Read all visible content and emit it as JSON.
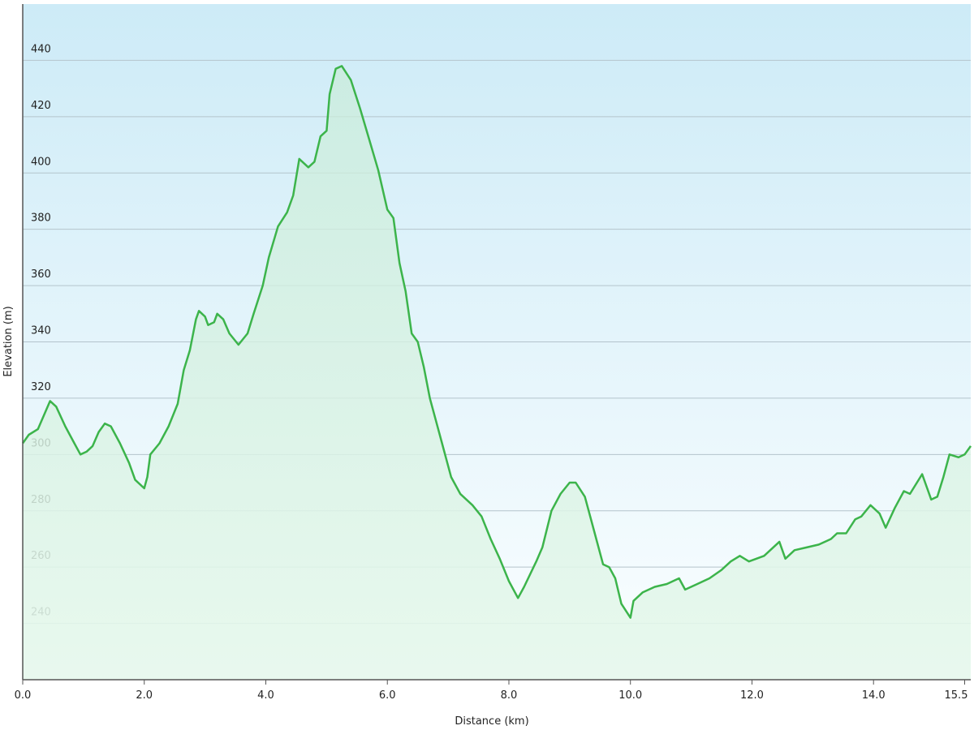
{
  "chart_data": {
    "type": "area",
    "xlabel": "Distance  (km)",
    "ylabel": "Elevation (m)",
    "color": "#3cb44b",
    "grid": true,
    "xlim": [
      0,
      15.6
    ],
    "ylim": [
      220,
      460
    ],
    "xticks": [
      {
        "value": 0,
        "label": "0.0"
      },
      {
        "value": 2,
        "label": "2.0"
      },
      {
        "value": 4,
        "label": "4.0"
      },
      {
        "value": 6,
        "label": "6.0"
      },
      {
        "value": 8,
        "label": "8.0"
      },
      {
        "value": 10,
        "label": "10.0"
      },
      {
        "value": 12,
        "label": "12.0"
      },
      {
        "value": 14,
        "label": "14.0"
      },
      15.5
    ],
    "yticks": [
      240,
      260,
      280,
      300,
      320,
      340,
      360,
      380,
      400,
      420,
      440
    ],
    "x": [
      0,
      0.1,
      0.25,
      0.45,
      0.55,
      0.7,
      0.85,
      0.95,
      1.05,
      1.15,
      1.25,
      1.35,
      1.45,
      1.6,
      1.75,
      1.85,
      2,
      2.05,
      2.1,
      2.25,
      2.4,
      2.55,
      2.65,
      2.75,
      2.85,
      2.9,
      3,
      3.05,
      3.15,
      3.2,
      3.3,
      3.4,
      3.55,
      3.7,
      3.8,
      3.95,
      4.05,
      4.2,
      4.35,
      4.45,
      4.55,
      4.7,
      4.8,
      4.9,
      5,
      5.05,
      5.15,
      5.25,
      5.4,
      5.55,
      5.7,
      5.85,
      6,
      6.1,
      6.2,
      6.3,
      6.4,
      6.5,
      6.6,
      6.7,
      6.8,
      6.9,
      7.05,
      7.2,
      7.4,
      7.55,
      7.7,
      7.85,
      8,
      8.15,
      8.25,
      8.45,
      8.55,
      8.7,
      8.85,
      9,
      9.1,
      9.25,
      9.4,
      9.55,
      9.65,
      9.75,
      9.85,
      10,
      10.05,
      10.2,
      10.4,
      10.6,
      10.8,
      10.9,
      11.1,
      11.3,
      11.5,
      11.65,
      11.8,
      11.95,
      12.2,
      12.45,
      12.55,
      12.7,
      12.9,
      13.1,
      13.3,
      13.4,
      13.55,
      13.7,
      13.8,
      13.95,
      14.1,
      14.2,
      14.35,
      14.5,
      14.6,
      14.8,
      14.95,
      15.05,
      15.15,
      15.25,
      15.4,
      15.5,
      15.6
    ],
    "values": [
      304,
      307,
      309,
      319,
      317,
      310,
      304,
      300,
      301,
      303,
      308,
      311,
      310,
      304,
      297,
      291,
      288,
      292,
      300,
      304,
      310,
      318,
      330,
      337,
      348,
      351,
      349,
      346,
      347,
      350,
      348,
      343,
      339,
      343,
      350,
      360,
      370,
      381,
      386,
      392,
      405,
      402,
      404,
      413,
      415,
      428,
      437,
      438,
      433,
      423,
      412,
      401,
      387,
      384,
      368,
      358,
      343,
      340,
      331,
      320,
      312,
      304,
      292,
      286,
      282,
      278,
      270,
      263,
      255,
      249,
      253,
      262,
      267,
      280,
      286,
      290,
      290,
      285,
      273,
      261,
      260,
      256,
      247,
      242,
      248,
      251,
      253,
      254,
      256,
      252,
      254,
      256,
      259,
      262,
      264,
      262,
      264,
      269,
      263,
      266,
      267,
      268,
      270,
      272,
      272,
      277,
      278,
      282,
      279,
      274,
      281,
      287,
      286,
      293,
      284,
      285,
      292,
      300,
      299,
      300,
      303
    ]
  }
}
